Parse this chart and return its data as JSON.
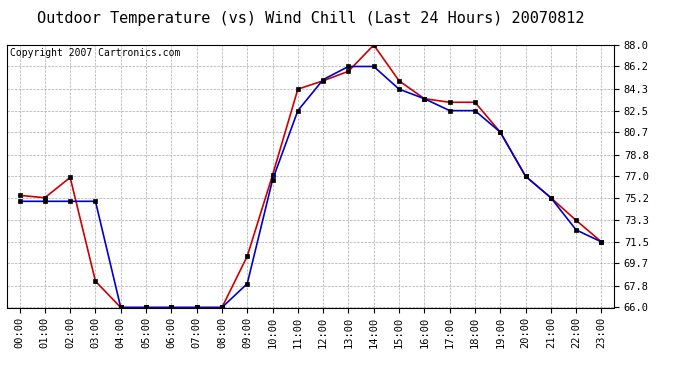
{
  "title": "Outdoor Temperature (vs) Wind Chill (Last 24 Hours) 20070812",
  "copyright": "Copyright 2007 Cartronics.com",
  "x_labels": [
    "00:00",
    "01:00",
    "02:00",
    "03:00",
    "04:00",
    "05:00",
    "06:00",
    "07:00",
    "08:00",
    "09:00",
    "10:00",
    "11:00",
    "12:00",
    "13:00",
    "14:00",
    "15:00",
    "16:00",
    "17:00",
    "18:00",
    "19:00",
    "20:00",
    "21:00",
    "22:00",
    "23:00"
  ],
  "red_data": [
    75.4,
    75.2,
    76.9,
    68.2,
    66.0,
    66.0,
    66.0,
    66.0,
    66.0,
    70.3,
    77.1,
    84.3,
    85.0,
    85.8,
    88.0,
    85.0,
    83.5,
    83.2,
    83.2,
    80.7,
    77.0,
    75.2,
    73.3,
    71.5
  ],
  "blue_data": [
    74.9,
    74.9,
    74.9,
    74.9,
    66.0,
    66.0,
    66.0,
    66.0,
    66.0,
    68.0,
    76.7,
    82.5,
    85.1,
    86.2,
    86.2,
    84.3,
    83.5,
    82.5,
    82.5,
    80.7,
    77.0,
    75.2,
    72.5,
    71.5
  ],
  "ylim": [
    66.0,
    88.0
  ],
  "yticks": [
    66.0,
    67.8,
    69.7,
    71.5,
    73.3,
    75.2,
    77.0,
    78.8,
    80.7,
    82.5,
    84.3,
    86.2,
    88.0
  ],
  "red_color": "#cc0000",
  "blue_color": "#0000cc",
  "bg_color": "#ffffff",
  "plot_bg_color": "#ffffff",
  "grid_color": "#aaaaaa",
  "title_fontsize": 11,
  "copyright_fontsize": 7,
  "tick_fontsize": 7.5,
  "marker": "s",
  "marker_size": 2.5,
  "line_width": 1.2
}
